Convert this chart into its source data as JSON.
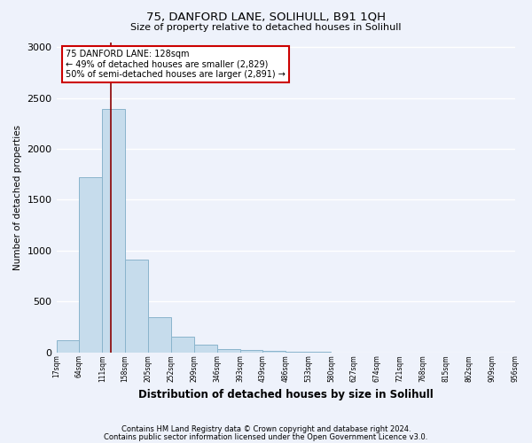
{
  "title1": "75, DANFORD LANE, SOLIHULL, B91 1QH",
  "title2": "Size of property relative to detached houses in Solihull",
  "xlabel": "Distribution of detached houses by size in Solihull",
  "ylabel": "Number of detached properties",
  "bin_edges": [
    17,
    64,
    111,
    158,
    205,
    252,
    299,
    346,
    393,
    439,
    486,
    533,
    580,
    627,
    674,
    721,
    768,
    815,
    862,
    909,
    956
  ],
  "bin_counts": [
    120,
    1720,
    2390,
    910,
    340,
    155,
    70,
    30,
    20,
    10,
    5,
    3,
    0,
    0,
    0,
    0,
    0,
    0,
    0,
    0
  ],
  "bar_color": "#c6dcec",
  "bar_edgecolor": "#8ab4cc",
  "vline_x": 128,
  "vline_color": "#8b0000",
  "ylim": [
    0,
    3050
  ],
  "yticks": [
    0,
    500,
    1000,
    1500,
    2000,
    2500,
    3000
  ],
  "annotation_title": "75 DANFORD LANE: 128sqm",
  "annotation_line1": "← 49% of detached houses are smaller (2,829)",
  "annotation_line2": "50% of semi-detached houses are larger (2,891) →",
  "footnote1": "Contains HM Land Registry data © Crown copyright and database right 2024.",
  "footnote2": "Contains public sector information licensed under the Open Government Licence v3.0.",
  "bg_color": "#eef2fb",
  "grid_color": "#ffffff",
  "tick_labels": [
    "17sqm",
    "64sqm",
    "111sqm",
    "158sqm",
    "205sqm",
    "252sqm",
    "299sqm",
    "346sqm",
    "393sqm",
    "439sqm",
    "486sqm",
    "533sqm",
    "580sqm",
    "627sqm",
    "674sqm",
    "721sqm",
    "768sqm",
    "815sqm",
    "862sqm",
    "909sqm",
    "956sqm"
  ]
}
